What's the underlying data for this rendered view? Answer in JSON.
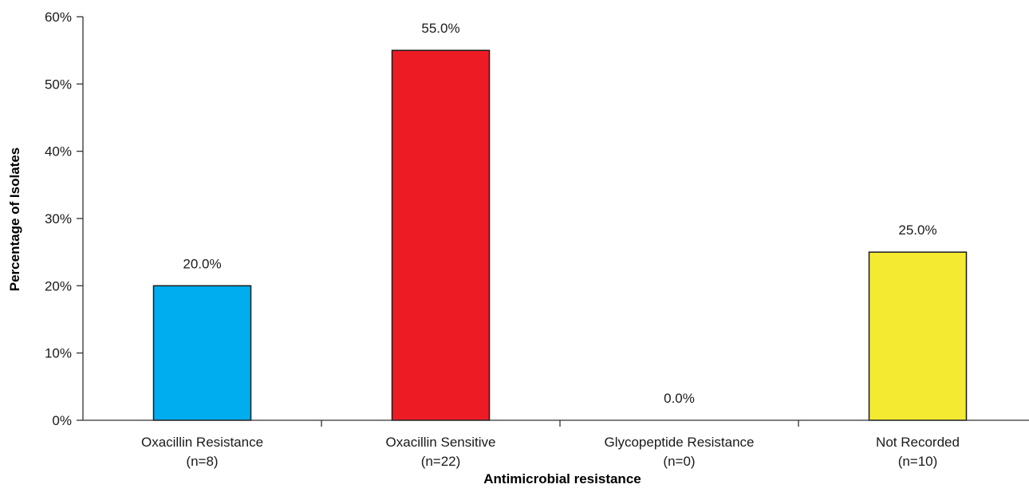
{
  "chart_data": {
    "type": "bar",
    "categories": [
      "Oxacillin Resistance",
      "Oxacillin Sensitive",
      "Glycopeptide Resistance",
      "Not Recorded"
    ],
    "category_counts": [
      "(n=8)",
      "(n=22)",
      "(n=0)",
      "(n=10)"
    ],
    "values": [
      20.0,
      55.0,
      0.0,
      25.0
    ],
    "data_labels": [
      "20.0%",
      "55.0%",
      "0.0%",
      "25.0%"
    ],
    "bar_colors": [
      "#00adef",
      "#ed1c24",
      "#ffffff",
      "#f3ea31"
    ],
    "title": "",
    "xlabel": "Antimicrobial resistance",
    "ylabel": "Percentage of Isolates",
    "ylim": [
      0,
      60
    ],
    "yticks": [
      0,
      10,
      20,
      30,
      40,
      50,
      60
    ],
    "ytick_labels": [
      "0%",
      "10%",
      "20%",
      "30%",
      "40%",
      "50%",
      "60%"
    ],
    "grid": false,
    "legend": "none"
  }
}
